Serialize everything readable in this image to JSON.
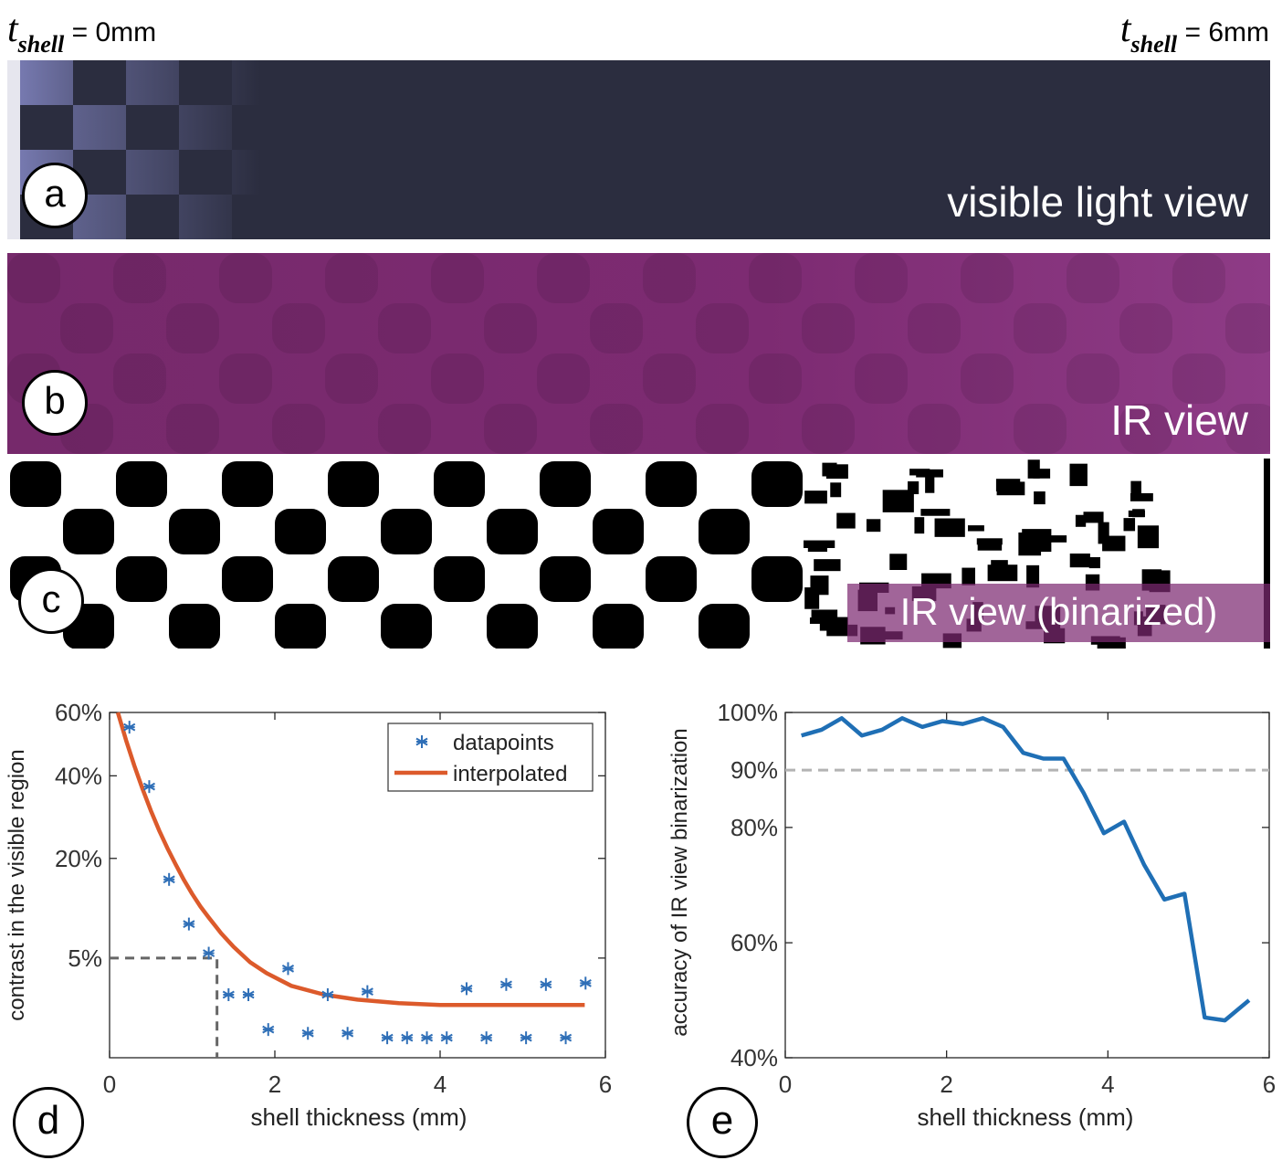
{
  "header": {
    "left": {
      "symbol": "t",
      "subscript": "shell",
      "value": "= 0mm"
    },
    "right": {
      "symbol": "t",
      "subscript": "shell",
      "value": "= 6mm"
    }
  },
  "panels": [
    {
      "letter": "a",
      "title": "visible light view"
    },
    {
      "letter": "b",
      "title": "IR view"
    },
    {
      "letter": "c",
      "title": "IR view (binarized)"
    }
  ],
  "colors": {
    "datapoints": "#2f6fb7",
    "interpolated": "#dc5a2b",
    "accuracy": "#1f6fb5",
    "ir": "#7d2a72",
    "visible": "#2b2d3f"
  },
  "chart_data": [
    {
      "panel": "d",
      "type": "scatter",
      "xlabel": "shell thickness (mm)",
      "ylabel": "contrast in the visible region",
      "xlim": [
        0,
        6
      ],
      "ylim": [
        0,
        0.6
      ],
      "y_scale": "sqrt",
      "xticks": [
        0,
        2,
        4,
        6
      ],
      "xtick_labels": [
        "0",
        "2",
        "4",
        "6"
      ],
      "yticks": [
        0.05,
        0.2,
        0.4,
        0.6
      ],
      "ytick_labels": [
        "5%",
        "20%",
        "40%",
        "60%"
      ],
      "legend_position": "top-right",
      "series": [
        {
          "name": "datapoints",
          "marker": "asterisk",
          "x": [
            0.24,
            0.48,
            0.72,
            0.96,
            1.2,
            1.44,
            1.68,
            1.92,
            2.16,
            2.4,
            2.64,
            2.88,
            3.12,
            3.36,
            3.6,
            3.84,
            4.08,
            4.32,
            4.56,
            4.8,
            5.04,
            5.28,
            5.52,
            5.76
          ],
          "y": [
            0.55,
            0.37,
            0.16,
            0.09,
            0.055,
            0.02,
            0.02,
            0.004,
            0.04,
            0.003,
            0.02,
            0.003,
            0.022,
            0.002,
            0.002,
            0.002,
            0.002,
            0.024,
            0.002,
            0.027,
            0.002,
            0.027,
            0.002,
            0.028
          ]
        },
        {
          "name": "interpolated",
          "style": "line",
          "x": [
            0.1,
            0.2,
            0.3,
            0.4,
            0.5,
            0.6,
            0.7,
            0.8,
            0.9,
            1.0,
            1.1,
            1.2,
            1.35,
            1.5,
            1.7,
            1.9,
            2.2,
            2.6,
            3.0,
            3.5,
            4.0,
            4.5,
            5.0,
            5.5,
            5.75
          ],
          "y": [
            0.6,
            0.507,
            0.429,
            0.363,
            0.307,
            0.26,
            0.221,
            0.188,
            0.159,
            0.135,
            0.115,
            0.099,
            0.078,
            0.062,
            0.046,
            0.036,
            0.026,
            0.02,
            0.017,
            0.015,
            0.014,
            0.014,
            0.014,
            0.014,
            0.014
          ]
        }
      ],
      "annotation": {
        "type": "dashed",
        "x": 1.3,
        "y": 0.05
      }
    },
    {
      "panel": "e",
      "type": "line",
      "xlabel": "shell thickness (mm)",
      "ylabel": "accuracy of IR view binarization",
      "xlim": [
        0,
        6
      ],
      "ylim": [
        0.4,
        1.0
      ],
      "y_scale": "custom",
      "xticks": [
        0,
        2,
        4,
        6
      ],
      "xtick_labels": [
        "0",
        "2",
        "4",
        "6"
      ],
      "yticks": [
        0.4,
        0.6,
        0.8,
        0.9,
        1.0
      ],
      "ytick_labels": [
        "40%",
        "60%",
        "80%",
        "90%",
        "100%"
      ],
      "reference_line": 0.9,
      "series": [
        {
          "x": [
            0.2,
            0.45,
            0.7,
            0.95,
            1.2,
            1.45,
            1.7,
            1.95,
            2.2,
            2.45,
            2.7,
            2.95,
            3.2,
            3.45,
            3.7,
            3.95,
            4.2,
            4.45,
            4.7,
            4.95,
            5.2,
            5.45,
            5.75
          ],
          "y": [
            0.96,
            0.97,
            0.99,
            0.96,
            0.97,
            0.99,
            0.975,
            0.985,
            0.98,
            0.99,
            0.975,
            0.93,
            0.92,
            0.92,
            0.86,
            0.79,
            0.81,
            0.735,
            0.675,
            0.685,
            0.47,
            0.465,
            0.5
          ]
        }
      ]
    }
  ]
}
